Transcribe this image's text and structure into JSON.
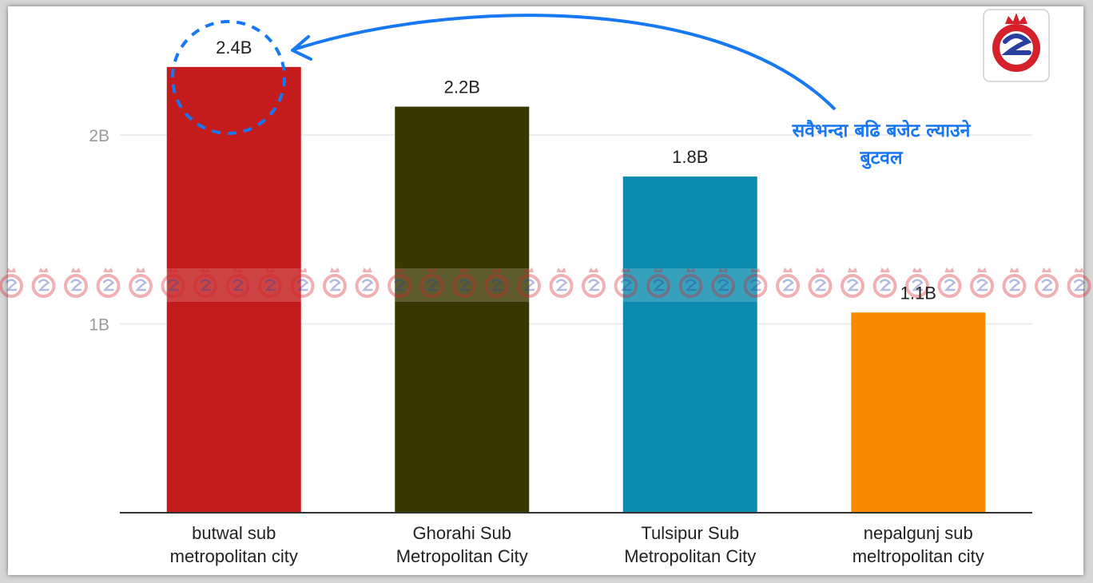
{
  "chart_data": {
    "type": "bar",
    "categories": [
      [
        "butwal sub",
        "metropolitan city"
      ],
      [
        "Ghorahi Sub",
        "Metropolitan City"
      ],
      [
        "Tulsipur Sub",
        "Metropolitan City"
      ],
      [
        "nepalgunj sub",
        "meltropolitan city"
      ]
    ],
    "values": [
      2.36,
      2.15,
      1.78,
      1.06
    ],
    "data_labels": [
      "2.4B",
      "2.2B",
      "1.8B",
      "1.1B"
    ],
    "colors": [
      "#c41c1c",
      "#3b3700",
      "#0b8cae",
      "#f78b00"
    ],
    "yticks": [
      {
        "value": 1,
        "label": "1B"
      },
      {
        "value": 2,
        "label": "2B"
      }
    ],
    "ylim": [
      0,
      2.6
    ],
    "grid": true,
    "annotation": {
      "lines": [
        "सवैभन्दा बढि बजेट ल्याउने",
        "बुटवल"
      ],
      "color": "#1877f2",
      "points_to": "butwal sub metropolitan city"
    },
    "logo": "red-circle-logo-icon",
    "watermark": "repeating-logo-watermark-icon"
  }
}
